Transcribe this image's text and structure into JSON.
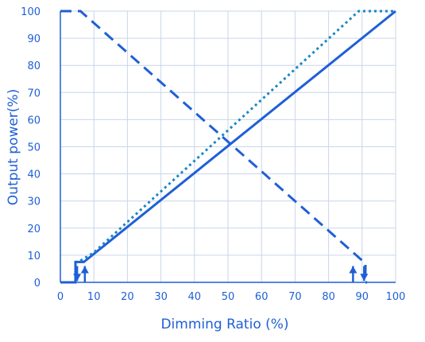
{
  "chart_data": {
    "type": "line",
    "xlabel": "Dimming  Ratio (%)",
    "ylabel": "Output power(%)",
    "xlim": [
      0,
      100
    ],
    "ylim": [
      0,
      100
    ],
    "x_ticks": [
      0,
      10,
      20,
      30,
      40,
      50,
      60,
      70,
      80,
      90,
      100
    ],
    "y_ticks": [
      0,
      10,
      20,
      30,
      40,
      50,
      60,
      70,
      80,
      90,
      100
    ],
    "grid": true,
    "colors": {
      "primary": "#1f5fd6",
      "secondary": "#1a86c4",
      "grid": "#c9d6ea",
      "axis": "#1f5fd6",
      "text": "#1f5fd6"
    },
    "series": [
      {
        "style": "solid",
        "color": "#1f5fd6",
        "x": [
          0,
          4.5,
          4.5,
          7,
          100
        ],
        "y": [
          0,
          0,
          7.5,
          7.5,
          100
        ]
      },
      {
        "style": "dotted",
        "color": "#1a86c4",
        "x": [
          6,
          10,
          89,
          92,
          100
        ],
        "y": [
          8,
          11,
          100,
          100,
          100
        ]
      },
      {
        "style": "dashed",
        "color": "#1f5fd6",
        "x": [
          0,
          6,
          91,
          91,
          91.5
        ],
        "y": [
          100,
          100,
          7,
          0,
          0
        ]
      }
    ],
    "arrows": [
      {
        "x": 5,
        "from": 6,
        "to": 0.5,
        "direction": "down"
      },
      {
        "x": 7.3,
        "from": 0,
        "to": 6,
        "direction": "up"
      },
      {
        "x": 87.3,
        "from": 0,
        "to": 6,
        "direction": "up"
      },
      {
        "x": 90.6,
        "from": 6,
        "to": 0.5,
        "direction": "down"
      }
    ]
  }
}
